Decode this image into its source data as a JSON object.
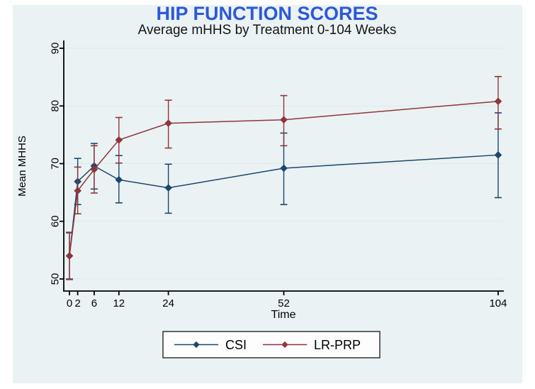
{
  "page": {
    "title": "HIP FUNCTION SCORES",
    "subtitle": "Average mHHS by Treatment 0-104 Weeks"
  },
  "colors": {
    "title": "#2b59d8",
    "panel_background": "#ebf2f4",
    "plot_background": "#ffffff",
    "gridline": "#dfeaec",
    "axis": "#000000",
    "csi": "#1a476f",
    "lrprp": "#90353b"
  },
  "chart_data": {
    "type": "line",
    "title": "HIP FUNCTION SCORES",
    "subtitle": "Average mHHS by Treatment 0-104 Weeks",
    "xlabel": "Time",
    "ylabel": "Mean MHHS",
    "x": [
      0,
      2,
      6,
      12,
      24,
      52,
      104
    ],
    "xticks": [
      0,
      2,
      6,
      12,
      24,
      52,
      104
    ],
    "yticks": [
      50,
      60,
      70,
      80,
      90
    ],
    "xlim": [
      0,
      104
    ],
    "ylim": [
      48.5,
      92
    ],
    "grid": true,
    "marker": "diamond",
    "error_bars": true,
    "legend_position": "bottom",
    "series": [
      {
        "name": "CSI",
        "color": "#1a476f",
        "values": [
          54.0,
          66.9,
          69.6,
          67.2,
          65.8,
          69.2,
          71.5
        ],
        "ci_low": [
          50.0,
          62.9,
          65.6,
          63.2,
          61.4,
          62.9,
          64.1
        ],
        "ci_high": [
          58.0,
          70.9,
          73.5,
          71.4,
          69.9,
          75.3,
          78.8
        ]
      },
      {
        "name": "LR-PRP",
        "color": "#90353b",
        "values": [
          54.0,
          65.3,
          69.0,
          74.1,
          77.0,
          77.6,
          80.8
        ],
        "ci_low": [
          49.9,
          61.3,
          64.9,
          70.1,
          72.7,
          73.1,
          76.0
        ],
        "ci_high": [
          58.1,
          69.4,
          73.1,
          78.0,
          81.0,
          81.8,
          85.1
        ]
      }
    ]
  },
  "legend": {
    "items": [
      {
        "label": "CSI"
      },
      {
        "label": "LR-PRP"
      }
    ]
  }
}
